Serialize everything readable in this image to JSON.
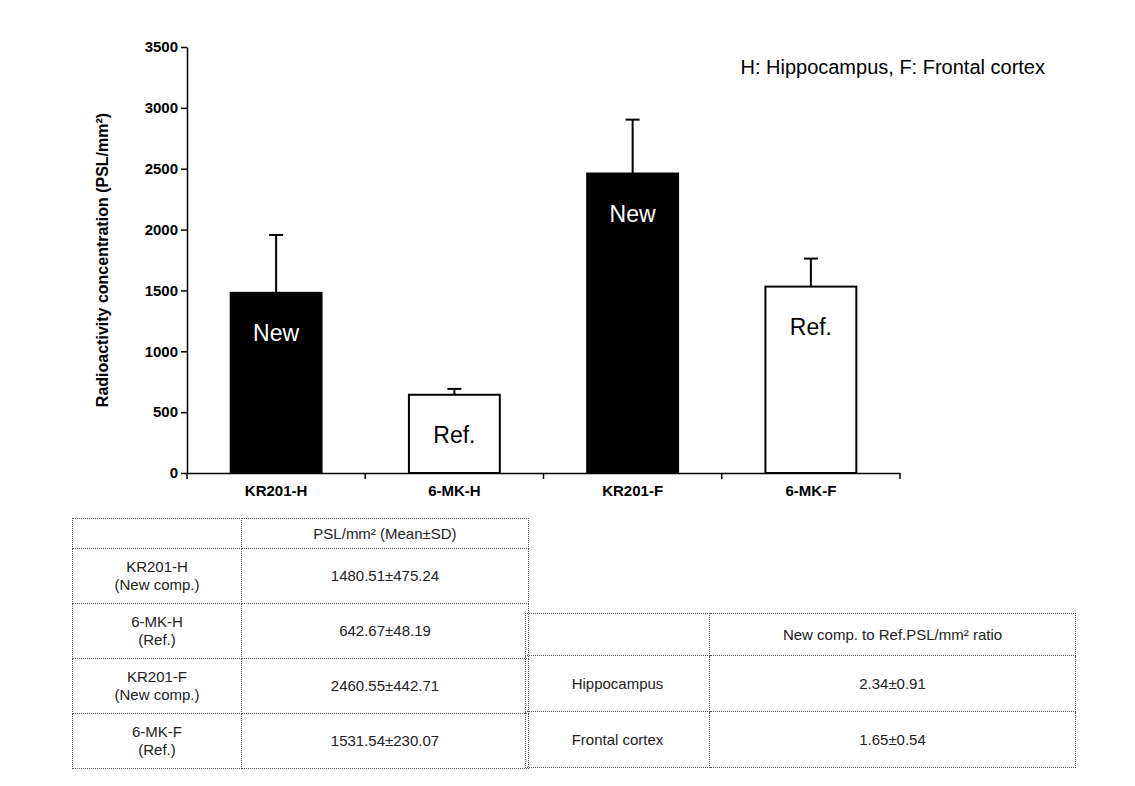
{
  "chart_data": {
    "type": "bar",
    "annotation": "H: Hippocampus, F: Frontal cortex",
    "y_label": "Radioactivity concentration (PSL/mm²)",
    "categories": [
      "KR201-H",
      "6-MK-H",
      "KR201-F",
      "6-MK-F"
    ],
    "values": [
      1480.51,
      642.67,
      2460.55,
      1531.54
    ],
    "errors": [
      475.24,
      48.19,
      442.71,
      230.07
    ],
    "bar_labels": [
      "New",
      "Ref.",
      "New",
      "Ref."
    ],
    "colors": [
      "#000000",
      "#ffffff",
      "#000000",
      "#ffffff"
    ],
    "ylim": [
      0,
      3500
    ],
    "yticks": [
      0,
      500,
      1000,
      1500,
      2000,
      2500,
      3000,
      3500
    ],
    "grid": false
  },
  "tables": [
    {
      "header": [
        null,
        "PSL/mm² (Mean±SD)"
      ],
      "rows": [
        [
          [
            "KR201-H",
            "(New comp.)"
          ],
          "1480.51±475.24"
        ],
        [
          [
            "6-MK-H",
            "(Ref.)"
          ],
          "642.67±48.19"
        ],
        [
          [
            "KR201-F",
            "(New comp.)"
          ],
          "2460.55±442.71"
        ],
        [
          [
            "6-MK-F",
            "(Ref.)"
          ],
          "1531.54±230.07"
        ]
      ]
    },
    {
      "header": [
        null,
        "New comp. to Ref.PSL/mm² ratio"
      ],
      "rows": [
        [
          "Hippocampus",
          "2.34±0.91"
        ],
        [
          "Frontal cortex",
          "1.65±0.54"
        ]
      ]
    }
  ]
}
